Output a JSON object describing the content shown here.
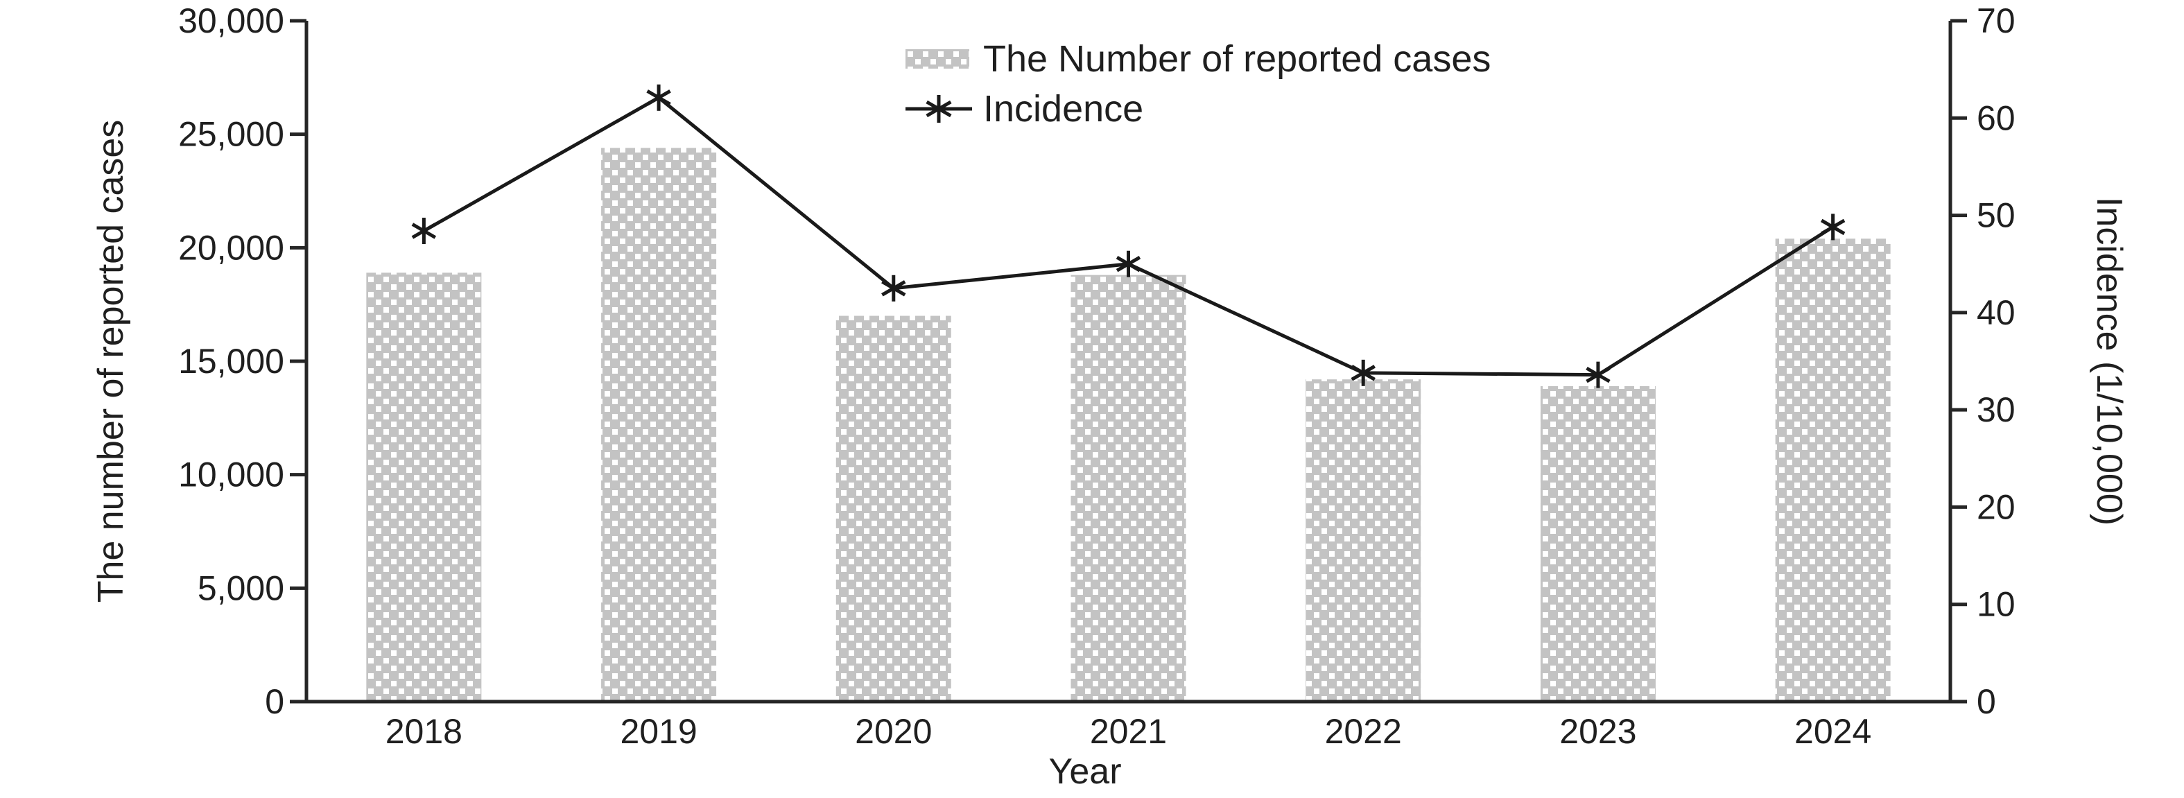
{
  "legend": {
    "items": [
      {
        "label": "The Number of reported cases",
        "marker": "dotted-bar-swatch"
      },
      {
        "label": "Incidence",
        "marker": "line-asterisk"
      }
    ]
  },
  "chart_data": {
    "type": "bar",
    "categories": [
      "2018",
      "2019",
      "2020",
      "2021",
      "2022",
      "2023",
      "2024"
    ],
    "series": [
      {
        "name": "The Number of reported cases",
        "type": "bar",
        "axis": "left",
        "values": [
          18900,
          24400,
          17000,
          18800,
          14200,
          13900,
          20400
        ]
      },
      {
        "name": "Incidence",
        "type": "line",
        "axis": "right",
        "marker": "asterisk",
        "values": [
          48.4,
          62.1,
          42.5,
          45.0,
          33.8,
          33.6,
          48.8
        ]
      }
    ],
    "title": "",
    "xlabel": "Year",
    "ylabel_left": "The number of reported cases",
    "ylabel_right": "Incidence (1/10,000)",
    "ylim_left": [
      0,
      30000
    ],
    "ylim_right": [
      0,
      70
    ],
    "yticks_left": [
      0,
      5000,
      10000,
      15000,
      20000,
      25000,
      30000
    ],
    "ytick_labels_left": [
      "0",
      "5,000",
      "10,000",
      "15,000",
      "20,000",
      "25,000",
      "30,000"
    ],
    "yticks_right": [
      0,
      10,
      20,
      30,
      40,
      50,
      60,
      70
    ],
    "ytick_labels_right": [
      "0",
      "10",
      "20",
      "30",
      "40",
      "50",
      "60",
      "70"
    ],
    "grid": false,
    "legend_position": "top-center",
    "colors": {
      "bar_fill": "#c3c3c3",
      "bar_dots": "#ffffff",
      "line": "#1a1a1a",
      "axis": "#262626",
      "text": "#1f1f1f"
    }
  }
}
